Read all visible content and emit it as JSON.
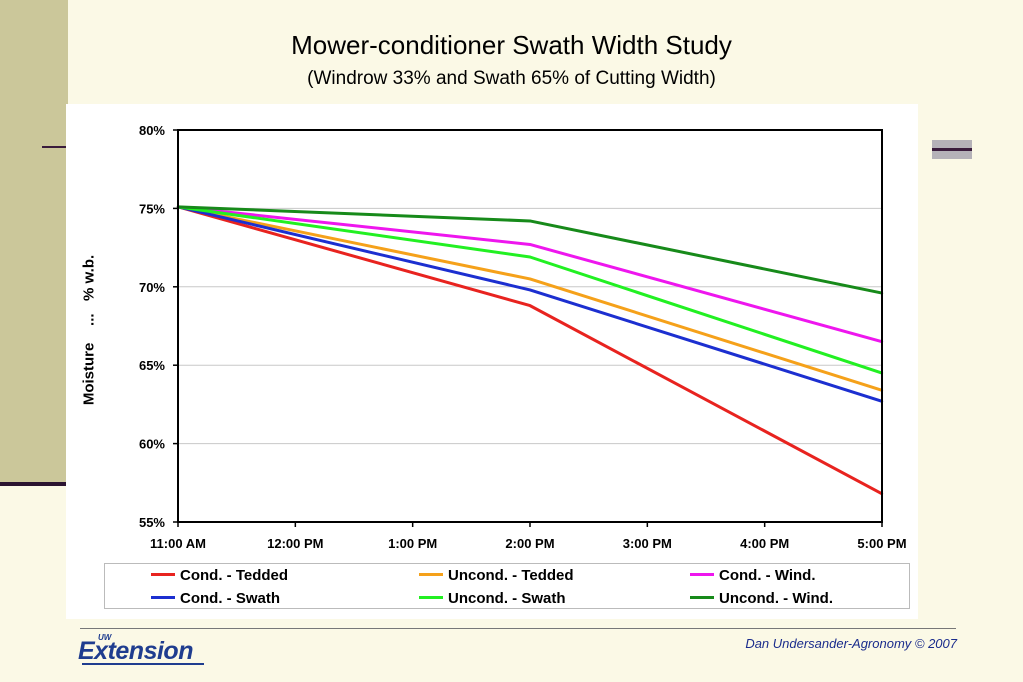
{
  "slide": {
    "title": "Mower-conditioner Swath Width Study",
    "subtitle": "(Windrow 33% and  Swath 65% of Cutting Width)",
    "credit": "Dan  Undersander-Agronomy © 2007",
    "logo_main": "Extension",
    "logo_prefix": "UW",
    "colors": {
      "background": "#fbf9e6",
      "sidebar": "#cbc79a",
      "logo": "#1f3d8f"
    }
  },
  "chart_data": {
    "type": "line",
    "ylabel": "Moisture    ...   % w.b.",
    "ylim": [
      55,
      80
    ],
    "yticks": [
      "55%",
      "60%",
      "65%",
      "70%",
      "75%",
      "80%"
    ],
    "x": [
      "11:00 AM",
      "12:00 PM",
      "1:00 PM",
      "2:00 PM",
      "3:00 PM",
      "4:00 PM",
      "5:00 PM"
    ],
    "x_hours": [
      11,
      12,
      13,
      14,
      15,
      16,
      17
    ],
    "grid": true,
    "legend_position": "bottom",
    "series": [
      {
        "name": "Cond. - Tedded",
        "color": "#e8231f",
        "x": [
          11,
          14,
          17
        ],
        "values": [
          75.1,
          68.8,
          56.8
        ]
      },
      {
        "name": "Uncond. - Tedded",
        "color": "#f5a11a",
        "x": [
          11,
          14,
          17
        ],
        "values": [
          75.1,
          70.5,
          63.4
        ]
      },
      {
        "name": "Cond. - Wind.",
        "color": "#ee16ee",
        "x": [
          11,
          14,
          17
        ],
        "values": [
          75.1,
          72.7,
          66.5
        ]
      },
      {
        "name": "Cond. - Swath",
        "color": "#1c2fd0",
        "x": [
          11,
          14,
          17
        ],
        "values": [
          75.1,
          69.8,
          62.7
        ]
      },
      {
        "name": "Uncond. - Swath",
        "color": "#22f022",
        "x": [
          11,
          14,
          17
        ],
        "values": [
          75.1,
          71.9,
          64.5
        ]
      },
      {
        "name": "Uncond. - Wind.",
        "color": "#178a1a",
        "x": [
          11,
          14,
          17
        ],
        "values": [
          75.1,
          74.2,
          69.6
        ]
      }
    ]
  }
}
